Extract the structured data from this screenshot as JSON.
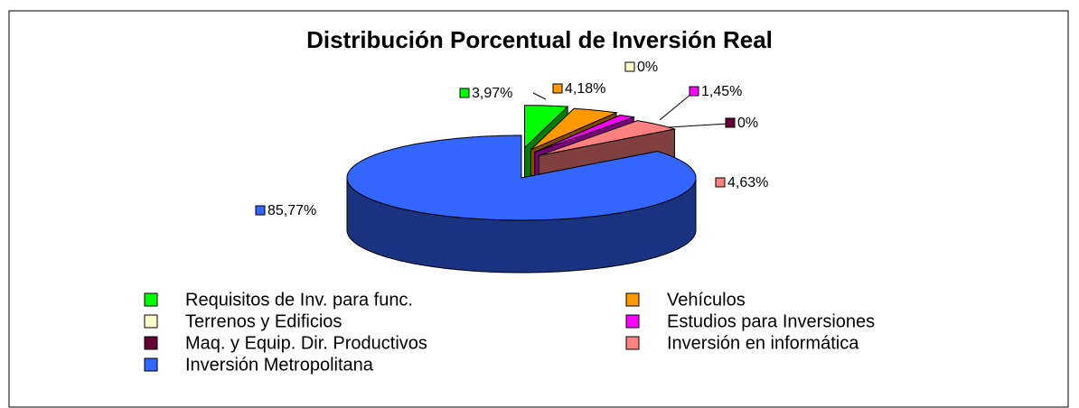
{
  "chart_data": {
    "type": "pie3d",
    "title": "Distribución Porcentual de Inversión Real",
    "categories": [
      "Requisitos de Inv. para func.",
      "Vehículos",
      "Terrenos y Edificios",
      "Estudios para Inversiones",
      "Maq. y Equip. Dir. Productivos",
      "Inversión en informática",
      "Inversión Metropolitana"
    ],
    "values": [
      3.97,
      4.18,
      0,
      1.45,
      0,
      4.63,
      85.77
    ],
    "value_labels": [
      "3,97%",
      "4,18%",
      "0%",
      "1,45%",
      "0%",
      "4,63%",
      "85,77%"
    ],
    "colors": [
      "#00ff00",
      "#ff9900",
      "#ffffcc",
      "#ff00ff",
      "#660033",
      "#ff8080",
      "#3366ff"
    ],
    "legend": "bottom"
  }
}
